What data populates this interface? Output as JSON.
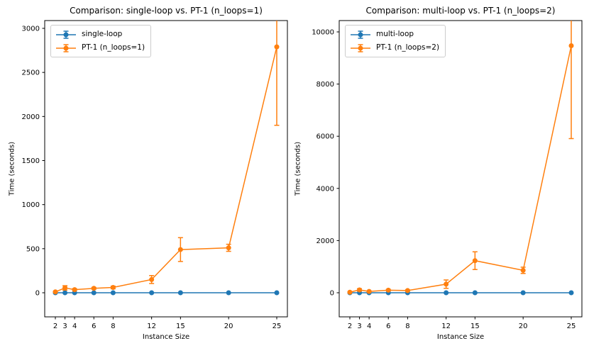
{
  "figure": {
    "background": "#ffffff"
  },
  "chart_data": [
    {
      "type": "line",
      "title": "Comparison: single-loop vs. PT-1 (n_loops=1)",
      "xlabel": "Instance Size",
      "ylabel": "Time (seconds)",
      "x_ticks": [
        2,
        3,
        4,
        6,
        8,
        12,
        15,
        20,
        25
      ],
      "y_ticks": [
        0,
        500,
        1000,
        1500,
        2000,
        2500,
        3000
      ],
      "xlim": [
        0.85,
        26.15
      ],
      "ylim": [
        -270,
        3090
      ],
      "grid": false,
      "legend_position": "upper left",
      "marker": "o",
      "error_bars": true,
      "series": [
        {
          "name": "single-loop",
          "color": "#1f77b4",
          "x": [
            2,
            3,
            4,
            6,
            8,
            12,
            15,
            20,
            25
          ],
          "y": [
            0,
            0,
            0,
            0,
            0,
            0,
            0,
            0,
            0
          ],
          "yerr": [
            0,
            0,
            0,
            0,
            0,
            0,
            0,
            0,
            0
          ]
        },
        {
          "name": "PT-1 (n_loops=1)",
          "color": "#ff7f0e",
          "x": [
            2,
            3,
            4,
            6,
            8,
            12,
            15,
            20,
            25
          ],
          "y": [
            10,
            55,
            35,
            50,
            60,
            150,
            490,
            510,
            2790
          ],
          "yerr": [
            5,
            25,
            10,
            10,
            15,
            45,
            135,
            40,
            890
          ]
        }
      ]
    },
    {
      "type": "line",
      "title": "Comparison: multi-loop vs. PT-1 (n_loops=2)",
      "xlabel": "Instance Size",
      "ylabel": "Time (seconds)",
      "x_ticks": [
        2,
        3,
        4,
        6,
        8,
        12,
        15,
        20,
        25
      ],
      "y_ticks": [
        0,
        2000,
        4000,
        6000,
        8000,
        10000
      ],
      "xlim": [
        0.85,
        26.15
      ],
      "ylim": [
        -920,
        10440
      ],
      "grid": false,
      "legend_position": "upper left",
      "marker": "o",
      "error_bars": true,
      "series": [
        {
          "name": "multi-loop",
          "color": "#1f77b4",
          "x": [
            2,
            3,
            4,
            6,
            8,
            12,
            15,
            20,
            25
          ],
          "y": [
            0,
            0,
            0,
            0,
            0,
            0,
            0,
            0,
            0
          ],
          "yerr": [
            0,
            0,
            0,
            0,
            0,
            0,
            0,
            0,
            0
          ]
        },
        {
          "name": "PT-1 (n_loops=2)",
          "color": "#ff7f0e",
          "x": [
            2,
            3,
            4,
            6,
            8,
            12,
            15,
            20,
            25
          ],
          "y": [
            20,
            110,
            50,
            100,
            85,
            330,
            1230,
            860,
            9470
          ],
          "yerr": [
            10,
            45,
            20,
            30,
            25,
            160,
            340,
            120,
            3560
          ]
        }
      ]
    }
  ]
}
